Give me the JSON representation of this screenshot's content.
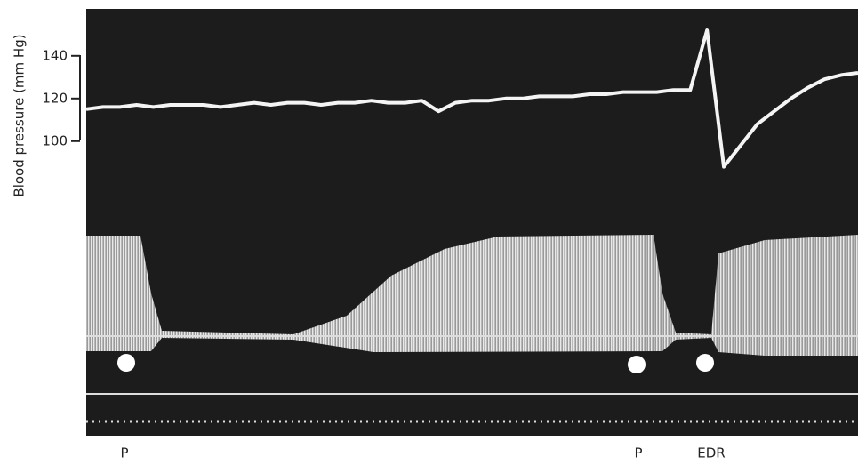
{
  "chart_data": {
    "type": "line",
    "y_label": "Blood pressure (mm Hg)",
    "categories": [
      null,
      null,
      null,
      null,
      null,
      null,
      null,
      null,
      null,
      null,
      null,
      null,
      null,
      null,
      null,
      null,
      null,
      null,
      null,
      null,
      null,
      null,
      null,
      null,
      null,
      null,
      null,
      null,
      null,
      null,
      null,
      null,
      null,
      null,
      null,
      null,
      null,
      null,
      null,
      null,
      null,
      null,
      null,
      null,
      null,
      null,
      null
    ],
    "values": [
      115,
      116,
      116,
      117,
      116,
      117,
      117,
      117,
      116,
      117,
      118,
      117,
      118,
      118,
      117,
      118,
      118,
      119,
      118,
      118,
      119,
      114,
      118,
      119,
      119,
      120,
      120,
      121,
      121,
      121,
      122,
      122,
      123,
      123,
      123,
      124,
      124,
      152,
      88,
      98,
      108,
      114,
      120,
      125,
      129,
      131,
      132
    ],
    "color": "#f4f4f4",
    "ylim": [
      -38,
      162
    ],
    "yticks": [
      100,
      120,
      140
    ],
    "annotations": [
      "P",
      "P",
      "EDR"
    ]
  }
}
